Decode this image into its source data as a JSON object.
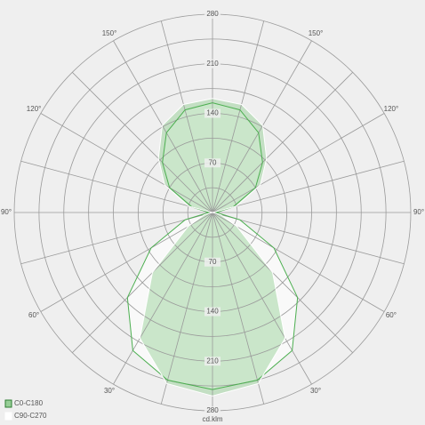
{
  "chart_data": {
    "type": "polar",
    "radial_unit": "cd.klm",
    "rlim": [
      0,
      280
    ],
    "rticks": [
      70,
      140,
      210,
      280
    ],
    "rgrid": [
      35,
      70,
      105,
      140,
      175,
      210,
      245,
      280
    ],
    "angle_grid": 15,
    "angle_ticks": [
      {
        "value": 30,
        "label": "30°"
      },
      {
        "value": 60,
        "label": "60°"
      },
      {
        "value": 90,
        "label": "90°"
      },
      {
        "value": 120,
        "label": "120°"
      },
      {
        "value": 150,
        "label": "150°"
      }
    ],
    "x": [
      0,
      15,
      30,
      45,
      60,
      75,
      90,
      105,
      120,
      135,
      150,
      165,
      180
    ],
    "series": [
      {
        "name": "C90-C270",
        "color": "#ffffff",
        "values": [
          250,
          245,
          225,
          170,
          100,
          40,
          5,
          30,
          70,
          100,
          130,
          150,
          155
        ]
      },
      {
        "name": "C0-C180",
        "color": "#5cb85c",
        "values": [
          259,
          250,
          205,
          120,
          40,
          12,
          0,
          35,
          78,
          108,
          142,
          158,
          161
        ]
      }
    ]
  }
}
